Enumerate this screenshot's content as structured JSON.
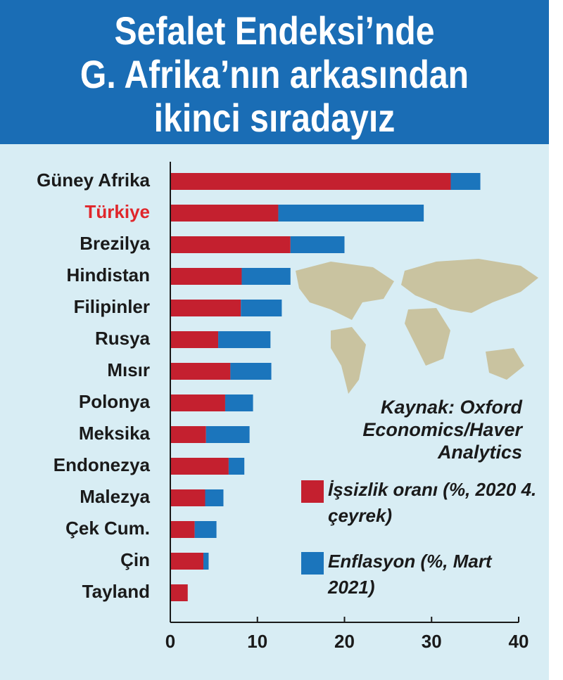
{
  "chart_data": {
    "type": "stacked-bar-horizontal",
    "title": [
      "Sefalet Endeksi’nde",
      "G. Afrika’nın arkasından",
      "ikinci sıradayız"
    ],
    "categories": [
      "Güney Afrika",
      "Türkiye",
      "Brezilya",
      "Hindistan",
      "Filipinler",
      "Rusya",
      "Mısır",
      "Polonya",
      "Meksika",
      "Endonezya",
      "Malezya",
      "Çek Cum.",
      "Çin",
      "Tayland"
    ],
    "category_label_colors": [
      "#1a1a1a",
      "#e0262b",
      "#1a1a1a",
      "#1a1a1a",
      "#1a1a1a",
      "#1a1a1a",
      "#1a1a1a",
      "#1a1a1a",
      "#1a1a1a",
      "#1a1a1a",
      "#1a1a1a",
      "#1a1a1a",
      "#1a1a1a",
      "#1a1a1a"
    ],
    "series": [
      {
        "name": "İşsizlik oranı (%, 2020 4. çeyrek)",
        "color": "#c4202f",
        "values": [
          32.2,
          12.4,
          13.8,
          8.2,
          8.1,
          5.5,
          6.9,
          6.3,
          4.1,
          6.7,
          4.0,
          2.8,
          3.8,
          2.0
        ]
      },
      {
        "name": "Enflasyon (%, Mart 2021)",
        "color": "#1b75bc",
        "values": [
          3.4,
          16.7,
          6.2,
          5.6,
          4.7,
          6.0,
          4.7,
          3.2,
          5.0,
          1.8,
          2.1,
          2.5,
          0.6,
          0
        ]
      }
    ],
    "source": "Kaynak: Oxford Economics/Haver Analytics",
    "xlim": [
      0,
      40
    ],
    "xticks": [
      0,
      10,
      20,
      30,
      40
    ]
  }
}
